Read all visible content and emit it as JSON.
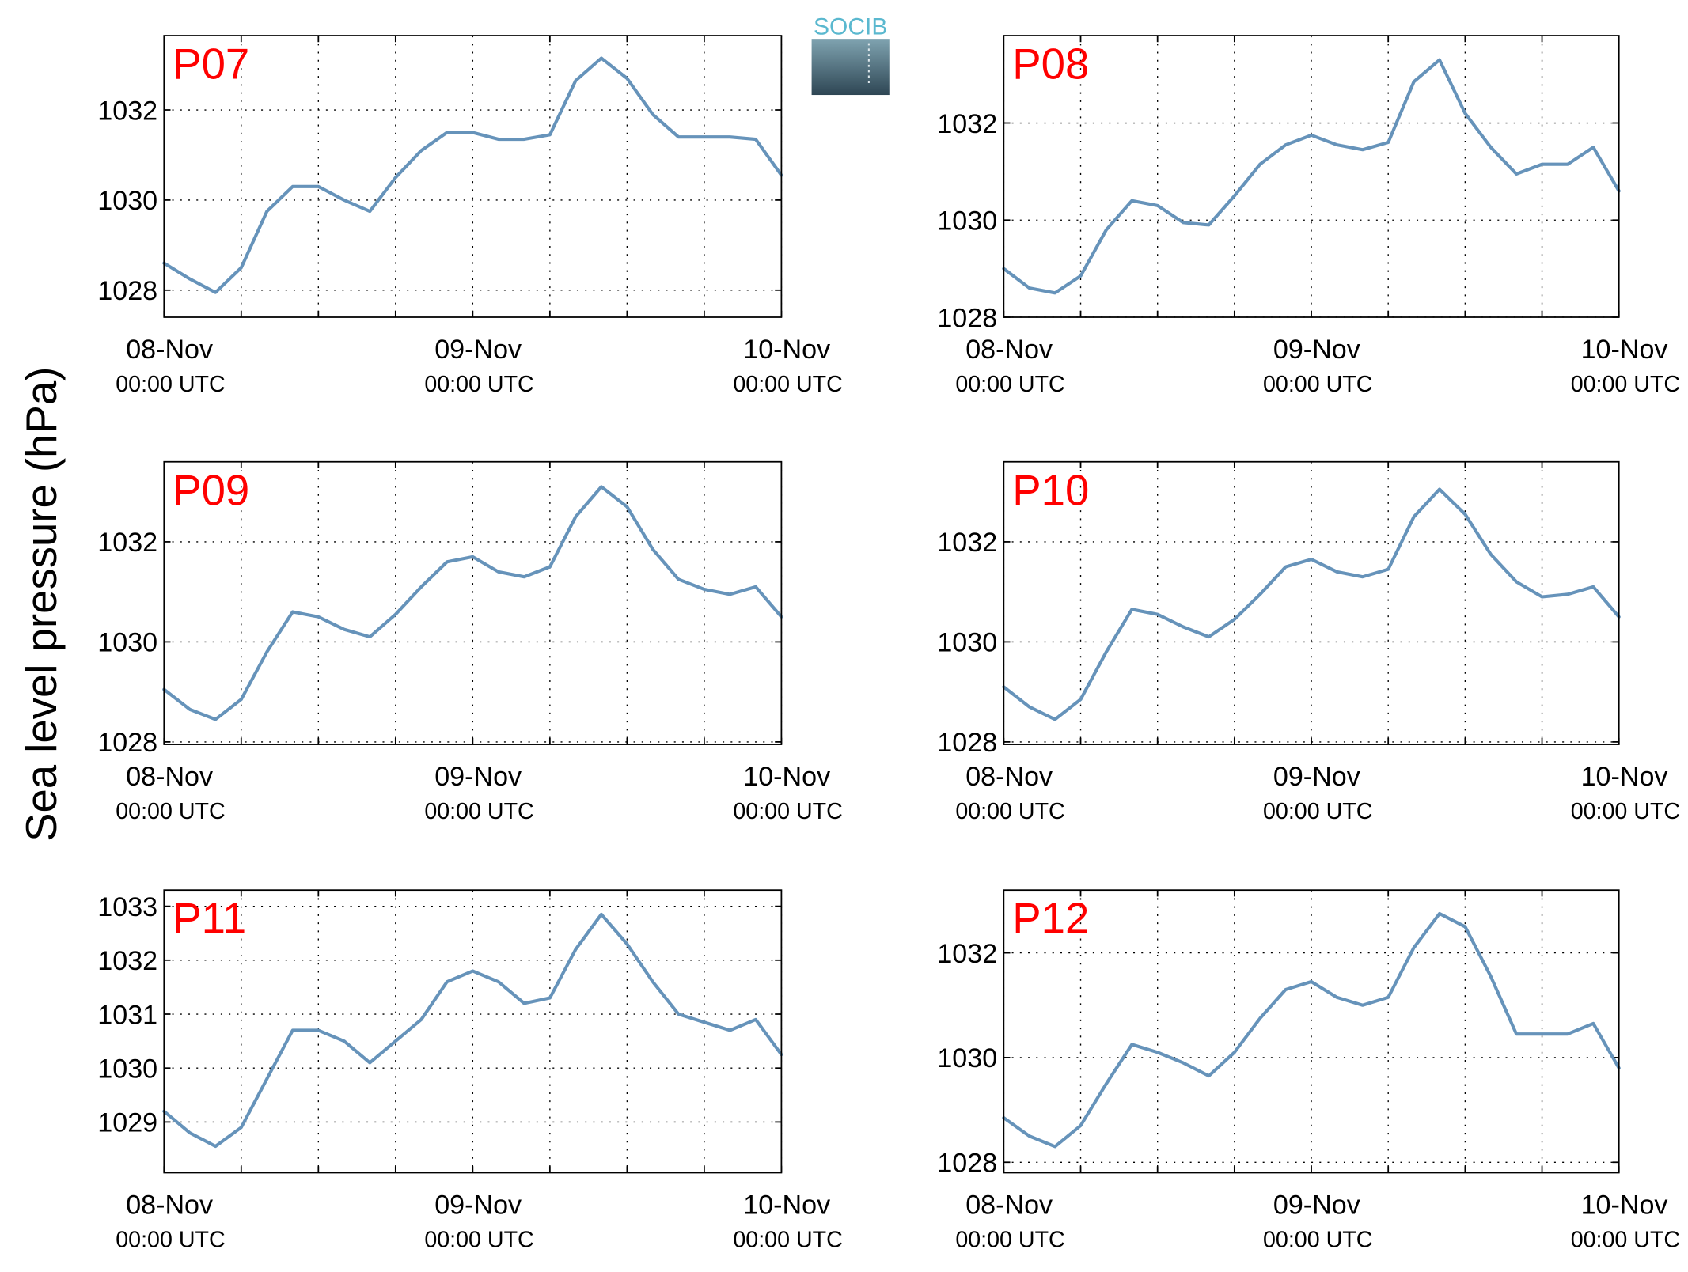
{
  "ylabel": "Sea level pressure (hPa)",
  "logo": "SOCIB",
  "chart_data": [
    {
      "type": "line",
      "title": "P07",
      "x": [
        0,
        2,
        4,
        6,
        8,
        10,
        12,
        14,
        16,
        18,
        20,
        22,
        24,
        26,
        28,
        30,
        32,
        34,
        36,
        38,
        40,
        42,
        44,
        46,
        48
      ],
      "series": [
        {
          "name": "P07",
          "color": "#6693ba",
          "values": [
            1028.6,
            1028.25,
            1027.95,
            1028.5,
            1029.75,
            1030.3,
            1030.3,
            1030.0,
            1029.75,
            1030.5,
            1031.1,
            1031.5,
            1031.5,
            1031.35,
            1031.35,
            1031.45,
            1032.65,
            1033.15,
            1032.7,
            1031.9,
            1031.4,
            1031.4,
            1031.4,
            1031.35,
            1030.55
          ]
        }
      ],
      "xlim": [
        0,
        48
      ],
      "xticks": [
        {
          "value": 0,
          "label": "08-Nov",
          "sublabel": "00:00 UTC"
        },
        {
          "value": 24,
          "label": "09-Nov",
          "sublabel": "00:00 UTC"
        },
        {
          "value": 48,
          "label": "10-Nov",
          "sublabel": "00:00 UTC"
        }
      ],
      "xminor": [
        6,
        12,
        18,
        30,
        36,
        42
      ],
      "ylim": [
        1027.4,
        1033.65
      ],
      "yticks": [
        1028,
        1030,
        1032
      ],
      "grid": true
    },
    {
      "type": "line",
      "title": "P08",
      "x": [
        0,
        2,
        4,
        6,
        8,
        10,
        12,
        14,
        16,
        18,
        20,
        22,
        24,
        26,
        28,
        30,
        32,
        34,
        36,
        38,
        40,
        42,
        44,
        46,
        48
      ],
      "series": [
        {
          "name": "P08",
          "color": "#6693ba",
          "values": [
            1029.0,
            1028.6,
            1028.5,
            1028.85,
            1029.8,
            1030.4,
            1030.3,
            1029.95,
            1029.9,
            1030.5,
            1031.15,
            1031.55,
            1031.75,
            1031.55,
            1031.45,
            1031.6,
            1032.85,
            1033.3,
            1032.2,
            1031.5,
            1030.95,
            1031.15,
            1031.15,
            1031.5,
            1030.6
          ]
        }
      ],
      "xlim": [
        0,
        48
      ],
      "xticks": [
        {
          "value": 0,
          "label": "08-Nov",
          "sublabel": "00:00 UTC"
        },
        {
          "value": 24,
          "label": "09-Nov",
          "sublabel": "00:00 UTC"
        },
        {
          "value": 48,
          "label": "10-Nov",
          "sublabel": "00:00 UTC"
        }
      ],
      "xminor": [
        6,
        12,
        18,
        30,
        36,
        42
      ],
      "ylim": [
        1028,
        1033.8
      ],
      "yticks": [
        1028,
        1030,
        1032
      ],
      "grid": true
    },
    {
      "type": "line",
      "title": "P09",
      "x": [
        0,
        2,
        4,
        6,
        8,
        10,
        12,
        14,
        16,
        18,
        20,
        22,
        24,
        26,
        28,
        30,
        32,
        34,
        36,
        38,
        40,
        42,
        44,
        46,
        48
      ],
      "series": [
        {
          "name": "P09",
          "color": "#6693ba",
          "values": [
            1029.05,
            1028.65,
            1028.45,
            1028.85,
            1029.8,
            1030.6,
            1030.5,
            1030.25,
            1030.1,
            1030.55,
            1031.1,
            1031.6,
            1031.7,
            1031.4,
            1031.3,
            1031.5,
            1032.5,
            1033.1,
            1032.7,
            1031.85,
            1031.25,
            1031.05,
            1030.95,
            1031.1,
            1030.5
          ]
        }
      ],
      "xlim": [
        0,
        48
      ],
      "xticks": [
        {
          "value": 0,
          "label": "08-Nov",
          "sublabel": "00:00 UTC"
        },
        {
          "value": 24,
          "label": "09-Nov",
          "sublabel": "00:00 UTC"
        },
        {
          "value": 48,
          "label": "10-Nov",
          "sublabel": "00:00 UTC"
        }
      ],
      "xminor": [
        6,
        12,
        18,
        30,
        36,
        42
      ],
      "ylim": [
        1027.95,
        1033.6
      ],
      "yticks": [
        1028,
        1030,
        1032
      ],
      "grid": true
    },
    {
      "type": "line",
      "title": "P10",
      "x": [
        0,
        2,
        4,
        6,
        8,
        10,
        12,
        14,
        16,
        18,
        20,
        22,
        24,
        26,
        28,
        30,
        32,
        34,
        36,
        38,
        40,
        42,
        44,
        46,
        48
      ],
      "series": [
        {
          "name": "P10",
          "color": "#6693ba",
          "values": [
            1029.1,
            1028.7,
            1028.45,
            1028.85,
            1029.8,
            1030.65,
            1030.55,
            1030.3,
            1030.1,
            1030.45,
            1030.95,
            1031.5,
            1031.65,
            1031.4,
            1031.3,
            1031.45,
            1032.5,
            1033.05,
            1032.55,
            1031.75,
            1031.2,
            1030.9,
            1030.95,
            1031.1,
            1030.5
          ]
        }
      ],
      "xlim": [
        0,
        48
      ],
      "xticks": [
        {
          "value": 0,
          "label": "08-Nov",
          "sublabel": "00:00 UTC"
        },
        {
          "value": 24,
          "label": "09-Nov",
          "sublabel": "00:00 UTC"
        },
        {
          "value": 48,
          "label": "10-Nov",
          "sublabel": "00:00 UTC"
        }
      ],
      "xminor": [
        6,
        12,
        18,
        30,
        36,
        42
      ],
      "ylim": [
        1027.95,
        1033.6
      ],
      "yticks": [
        1028,
        1030,
        1032
      ],
      "grid": true
    },
    {
      "type": "line",
      "title": "P11",
      "x": [
        0,
        2,
        4,
        6,
        8,
        10,
        12,
        14,
        16,
        18,
        20,
        22,
        24,
        26,
        28,
        30,
        32,
        34,
        36,
        38,
        40,
        42,
        44,
        46,
        48
      ],
      "series": [
        {
          "name": "P11",
          "color": "#6693ba",
          "values": [
            1029.2,
            1028.8,
            1028.55,
            1028.9,
            1029.8,
            1030.7,
            1030.7,
            1030.5,
            1030.1,
            1030.5,
            1030.9,
            1031.6,
            1031.8,
            1031.6,
            1031.2,
            1031.3,
            1032.2,
            1032.85,
            1032.3,
            1031.6,
            1031.0,
            1030.85,
            1030.7,
            1030.9,
            1030.25
          ]
        }
      ],
      "xlim": [
        0,
        48
      ],
      "xticks": [
        {
          "value": 0,
          "label": "08-Nov",
          "sublabel": "00:00 UTC"
        },
        {
          "value": 24,
          "label": "09-Nov",
          "sublabel": "00:00 UTC"
        },
        {
          "value": 48,
          "label": "10-Nov",
          "sublabel": "00:00 UTC"
        }
      ],
      "xminor": [
        6,
        12,
        18,
        30,
        36,
        42
      ],
      "ylim": [
        1028.06,
        1033.3
      ],
      "yticks": [
        1029,
        1030,
        1031,
        1032,
        1033
      ],
      "grid": true
    },
    {
      "type": "line",
      "title": "P12",
      "x": [
        0,
        2,
        4,
        6,
        8,
        10,
        12,
        14,
        16,
        18,
        20,
        22,
        24,
        26,
        28,
        30,
        32,
        34,
        36,
        38,
        40,
        42,
        44,
        46,
        48
      ],
      "series": [
        {
          "name": "P12",
          "color": "#6693ba",
          "values": [
            1028.85,
            1028.5,
            1028.3,
            1028.7,
            1029.5,
            1030.25,
            1030.1,
            1029.9,
            1029.65,
            1030.1,
            1030.75,
            1031.3,
            1031.45,
            1031.15,
            1031.0,
            1031.15,
            1032.1,
            1032.75,
            1032.5,
            1031.55,
            1030.45,
            1030.45,
            1030.45,
            1030.65,
            1029.8
          ]
        }
      ],
      "xlim": [
        0,
        48
      ],
      "xticks": [
        {
          "value": 0,
          "label": "08-Nov",
          "sublabel": "00:00 UTC"
        },
        {
          "value": 24,
          "label": "09-Nov",
          "sublabel": "00:00 UTC"
        },
        {
          "value": 48,
          "label": "10-Nov",
          "sublabel": "00:00 UTC"
        }
      ],
      "xminor": [
        6,
        12,
        18,
        30,
        36,
        42
      ],
      "ylim": [
        1027.8,
        1033.2
      ],
      "yticks": [
        1028,
        1030,
        1032
      ],
      "grid": true
    }
  ]
}
